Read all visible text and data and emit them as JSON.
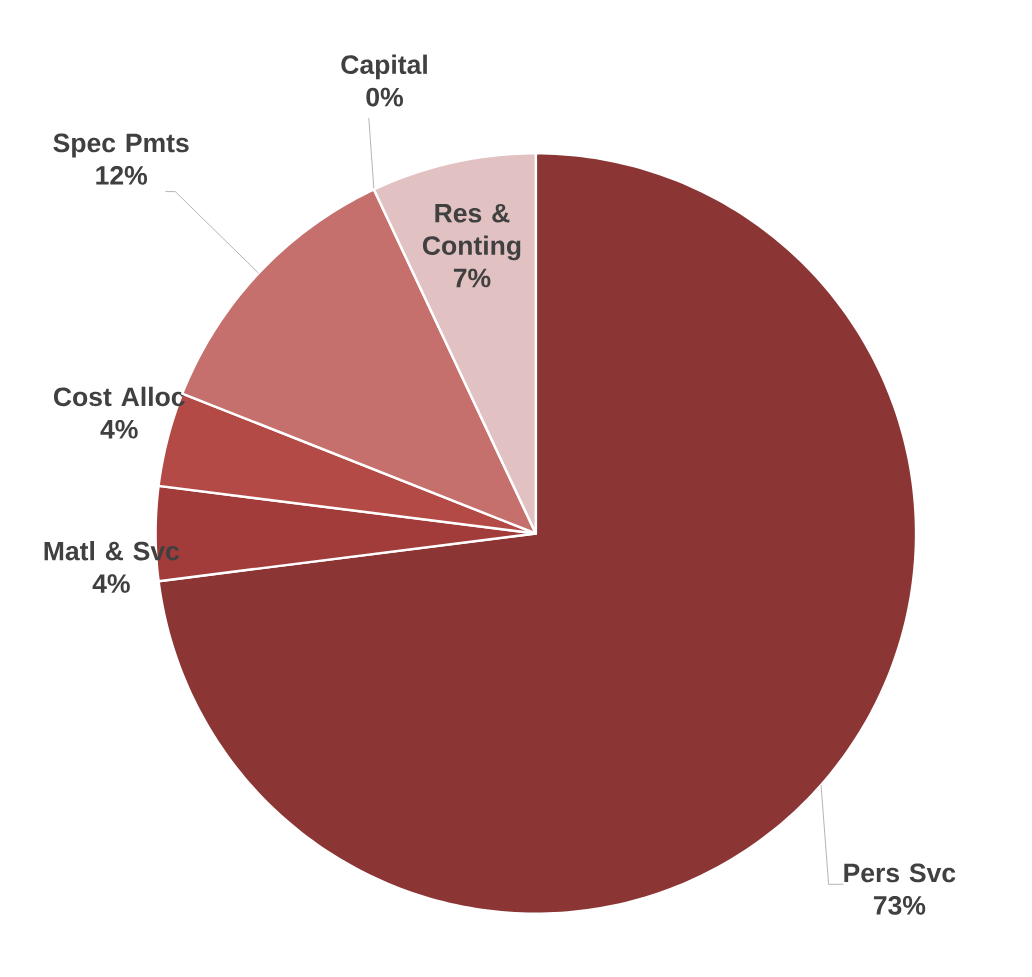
{
  "chart_data": {
    "type": "pie",
    "categories": [
      "Pers Svc",
      "Matl & Svc",
      "Cost Alloc",
      "Spec Pmts",
      "Capital",
      "Res & Conting"
    ],
    "values": [
      73,
      4,
      4,
      12,
      0,
      7
    ],
    "value_labels": [
      "73%",
      "4%",
      "4%",
      "12%",
      "0%",
      "7%"
    ],
    "colors": [
      "#8b3535",
      "#a13c3a",
      "#b34a46",
      "#c5706d",
      "#d9a3a3",
      "#e2c1c2"
    ]
  }
}
